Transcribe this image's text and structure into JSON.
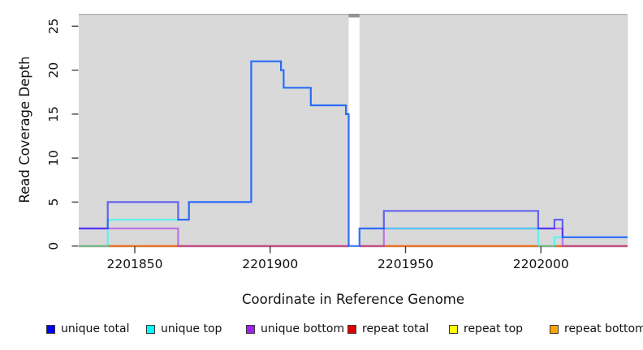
{
  "figure": {
    "x_axis_label": "Coordinate in Reference Genome",
    "y_axis_label": "Read Coverage Depth"
  },
  "chart_data": {
    "type": "line",
    "subtype": "step-coverage",
    "title": "",
    "xlabel": "Coordinate in Reference Genome",
    "ylabel": "Read Coverage Depth",
    "x_ticks": [
      2201850,
      2201900,
      2201950,
      2202000
    ],
    "y_ticks": [
      0,
      5,
      10,
      15,
      20,
      25
    ],
    "xlim": [
      2201829,
      2202032
    ],
    "ylim": [
      0,
      26.4
    ],
    "grid": false,
    "legend_position": "bottom",
    "panel_background": "#d9d9d9",
    "mask_region": {
      "start": 2201929,
      "end": 2201933,
      "color": "#ffffff",
      "cap_color": "#949494"
    },
    "line_opacity": 0.55,
    "line_width": 2.2,
    "draw_order": [
      "repeat bottom",
      "repeat top",
      "repeat total",
      "unique bottom",
      "unique top",
      "unique total"
    ],
    "series": [
      {
        "name": "unique total",
        "color": "#0000FF",
        "steps": [
          [
            2201829,
            2
          ],
          [
            2201840,
            5
          ],
          [
            2201866,
            3
          ],
          [
            2201870,
            5
          ],
          [
            2201893,
            21
          ],
          [
            2201904,
            20
          ],
          [
            2201905,
            18
          ],
          [
            2201915,
            16
          ],
          [
            2201928,
            15
          ],
          [
            2201929,
            0
          ],
          [
            2201933,
            2
          ],
          [
            2201942,
            4
          ],
          [
            2201999,
            2
          ],
          [
            2202005,
            3
          ],
          [
            2202008,
            1
          ],
          [
            2202032,
            1
          ]
        ]
      },
      {
        "name": "unique top",
        "color": "#00FFFF",
        "steps": [
          [
            2201829,
            0
          ],
          [
            2201840,
            3
          ],
          [
            2201870,
            5
          ],
          [
            2201893,
            21
          ],
          [
            2201904,
            20
          ],
          [
            2201905,
            18
          ],
          [
            2201915,
            16
          ],
          [
            2201928,
            15
          ],
          [
            2201929,
            0
          ],
          [
            2201933,
            2
          ],
          [
            2201999,
            0
          ],
          [
            2202005,
            1
          ],
          [
            2202032,
            1
          ]
        ]
      },
      {
        "name": "unique bottom",
        "color": "#A020F0",
        "steps": [
          [
            2201829,
            2
          ],
          [
            2201866,
            0
          ],
          [
            2201942,
            2
          ],
          [
            2202008,
            0
          ],
          [
            2202032,
            0
          ]
        ]
      },
      {
        "name": "repeat total",
        "color": "#DD0000",
        "steps": [
          [
            2201829,
            0
          ],
          [
            2202032,
            0
          ]
        ]
      },
      {
        "name": "repeat top",
        "color": "#FFFF00",
        "steps": [
          [
            2201829,
            0
          ],
          [
            2202032,
            0
          ]
        ]
      },
      {
        "name": "repeat bottom",
        "color": "#FFA500",
        "steps": [
          [
            2201829,
            0
          ],
          [
            2202032,
            0
          ]
        ]
      }
    ]
  },
  "legend": {
    "items": [
      {
        "label": "unique total",
        "color": "#0000FF"
      },
      {
        "label": "unique top",
        "color": "#00FFFF"
      },
      {
        "label": "unique bottom",
        "color": "#A020F0"
      },
      {
        "label": "repeat total",
        "color": "#DD0000"
      },
      {
        "label": "repeat top",
        "color": "#FFFF00"
      },
      {
        "label": "repeat bottom",
        "color": "#FFA500"
      }
    ]
  }
}
